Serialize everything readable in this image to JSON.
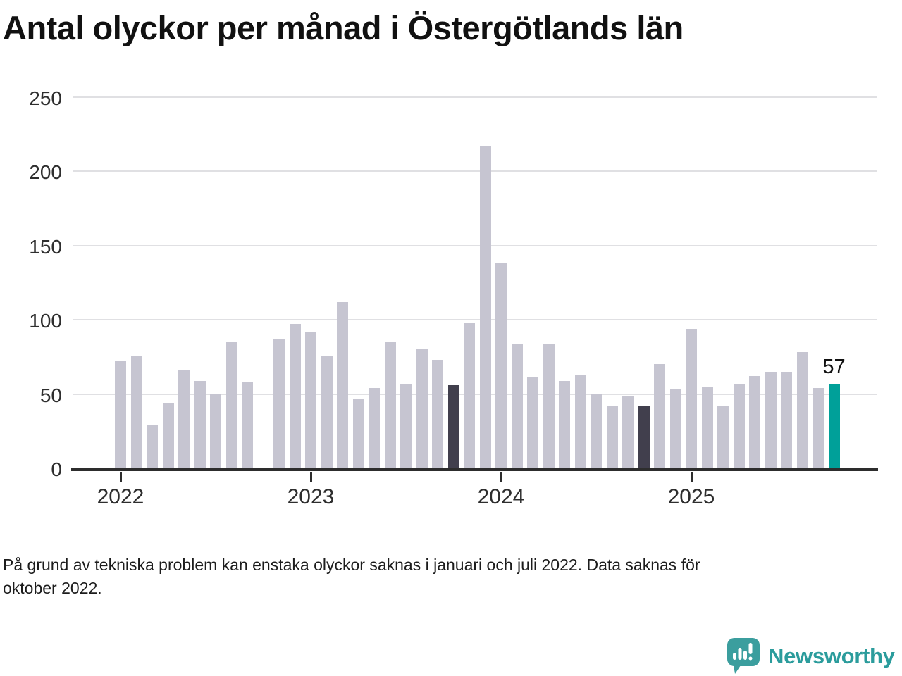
{
  "title": "Antal olyckor per månad i Östergötlands län",
  "chart_data": {
    "type": "bar",
    "title": "Antal olyckor per månad i Östergötlands län",
    "ylabel": "",
    "xlabel": "",
    "ylim": [
      0,
      250
    ],
    "y_ticks": [
      0,
      50,
      100,
      150,
      200,
      250
    ],
    "x_tick_labels": [
      "2022",
      "2023",
      "2024",
      "2025"
    ],
    "grid": "horizontal",
    "x": [
      "2022-01",
      "2022-02",
      "2022-03",
      "2022-04",
      "2022-05",
      "2022-06",
      "2022-07",
      "2022-08",
      "2022-09",
      "2022-10",
      "2022-11",
      "2022-12",
      "2023-01",
      "2023-02",
      "2023-03",
      "2023-04",
      "2023-05",
      "2023-06",
      "2023-07",
      "2023-08",
      "2023-09",
      "2023-10",
      "2023-11",
      "2023-12",
      "2024-01",
      "2024-02",
      "2024-03",
      "2024-04",
      "2024-05",
      "2024-06",
      "2024-07",
      "2024-08",
      "2024-09",
      "2024-10",
      "2024-11",
      "2024-12",
      "2025-01",
      "2025-02",
      "2025-03",
      "2025-04",
      "2025-05",
      "2025-06",
      "2025-07",
      "2025-08",
      "2025-09",
      "2025-10"
    ],
    "values": [
      72,
      76,
      29,
      44,
      66,
      59,
      50,
      85,
      58,
      null,
      87,
      97,
      92,
      76,
      112,
      47,
      54,
      85,
      57,
      80,
      73,
      56,
      98,
      217,
      138,
      84,
      61,
      84,
      59,
      63,
      50,
      42,
      49,
      42,
      70,
      53,
      94,
      55,
      42,
      57,
      62,
      65,
      65,
      78,
      54,
      57
    ],
    "missing_months": [
      "2022-10"
    ],
    "highlight_current": "2025-10",
    "highlight_compare": [
      "2023-10",
      "2024-10"
    ],
    "annotation": {
      "x": "2025-10",
      "label": "57"
    }
  },
  "colors": {
    "bar": "#c6c5d1",
    "bar_compare": "#413f4d",
    "bar_current": "#00a099",
    "axis": "#2d2d2d",
    "grid": "#e0e0e3",
    "tick_text": "#2e2e2e",
    "brand_teal": "#2b9c9c"
  },
  "footnote": {
    "lines": [
      "På grund av tekniska problem kan enstaka olyckor saknas i januari och juli 2022. Data saknas för",
      "oktober 2022."
    ]
  },
  "logo": {
    "text": "Newsworthy"
  }
}
